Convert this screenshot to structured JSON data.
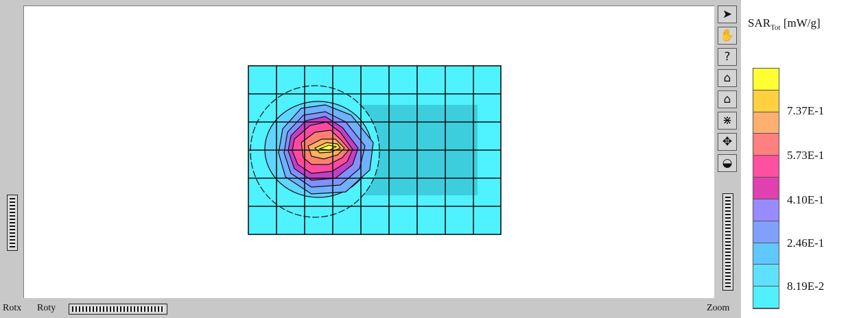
{
  "bottom_bar": {
    "rotx_label": "Rotx",
    "roty_label": "Roty",
    "zoom_label": "Zoom"
  },
  "toolbar": {
    "tools": [
      {
        "name": "pointer-icon",
        "glyph": "➤"
      },
      {
        "name": "hand-icon",
        "glyph": "✋"
      },
      {
        "name": "help-icon",
        "glyph": "?"
      },
      {
        "name": "home-icon",
        "glyph": "⌂"
      },
      {
        "name": "home-check-icon",
        "glyph": "⌂"
      },
      {
        "name": "grid-icon",
        "glyph": "⋇"
      },
      {
        "name": "move-icon",
        "glyph": "✥"
      },
      {
        "name": "shade-icon",
        "glyph": "◒"
      }
    ]
  },
  "legend": {
    "title_main": "SAR",
    "title_sub": "Tot",
    "title_unit": "[mW/g]",
    "colors": [
      "#ffff33",
      "#ffd040",
      "#ffb070",
      "#ff8080",
      "#ff50a0",
      "#e040b0",
      "#9a8aff",
      "#80a0ff",
      "#60c8ff",
      "#60e0ff",
      "#50f0ff"
    ],
    "labels": [
      "7.37E-1",
      "5.73E-1",
      "4.10E-1",
      "2.46E-1",
      "8.19E-2"
    ]
  },
  "colors": {
    "grid_fill": "#4ff2ff",
    "grid_line": "#111111",
    "contour_fill": "#39c8d8",
    "hot": "#e8d840"
  }
}
